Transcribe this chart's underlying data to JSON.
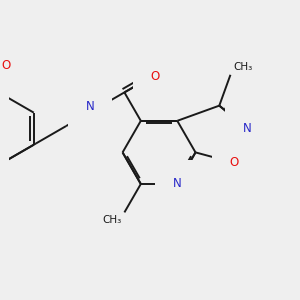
{
  "background_color": "#efefef",
  "bond_color": "#1a1a1a",
  "atom_colors": {
    "N": "#2828c8",
    "O": "#e81010",
    "H": "#7a9a9a",
    "C": "#1a1a1a"
  },
  "figsize": [
    3.0,
    3.0
  ],
  "dpi": 100
}
